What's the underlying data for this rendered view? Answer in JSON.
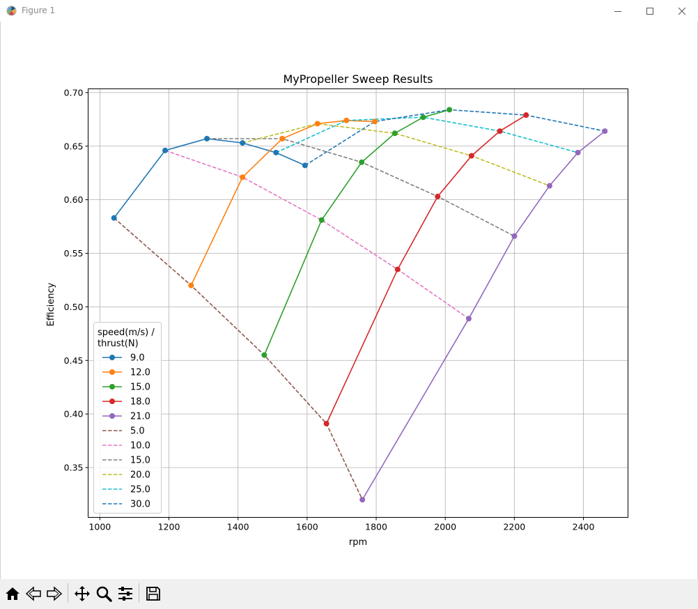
{
  "window": {
    "title": "Figure 1"
  },
  "toolbar": {
    "buttons": [
      "home-icon",
      "back-icon",
      "forward-icon",
      "pan-icon",
      "zoom-icon",
      "configure-icon",
      "save-icon"
    ]
  },
  "chart_data": {
    "type": "line",
    "title": "MyPropeller Sweep Results",
    "xlabel": "rpm",
    "ylabel": "Efficiency",
    "xlim": [
      966,
      2529
    ],
    "ylim": [
      0.3035,
      0.7035
    ],
    "xticks": [
      1000,
      1200,
      1400,
      1600,
      1800,
      2000,
      2200,
      2400
    ],
    "xtick_labels": [
      "1000",
      "1200",
      "1400",
      "1600",
      "1800",
      "2000",
      "2200",
      "2400"
    ],
    "yticks": [
      0.35,
      0.4,
      0.45,
      0.5,
      0.55,
      0.6,
      0.65,
      0.7
    ],
    "ytick_labels": [
      "0.35",
      "0.40",
      "0.45",
      "0.50",
      "0.55",
      "0.60",
      "0.65",
      "0.70"
    ],
    "grid": true,
    "legend": {
      "title": "speed(m/s) /\nthrust(N)",
      "title_lines": [
        "speed(m/s) /",
        "thrust(N)"
      ],
      "placement": "lower-left"
    },
    "series": [
      {
        "name": "9.0",
        "style": "solid",
        "marker": "circle",
        "color": "#1f77b4",
        "x": [
          1041,
          1189,
          1310,
          1413,
          1510,
          1594
        ],
        "y": [
          0.583,
          0.646,
          0.657,
          0.653,
          0.644,
          0.632
        ]
      },
      {
        "name": "12.0",
        "style": "solid",
        "marker": "circle",
        "color": "#ff7f0e",
        "x": [
          1264,
          1413,
          1528,
          1630,
          1714,
          1796
        ],
        "y": [
          0.52,
          0.621,
          0.657,
          0.671,
          0.674,
          0.673
        ]
      },
      {
        "name": "15.0",
        "style": "solid",
        "marker": "circle",
        "color": "#2ca02c",
        "x": [
          1476,
          1642,
          1758,
          1854,
          1936,
          2012
        ],
        "y": [
          0.455,
          0.581,
          0.635,
          0.662,
          0.677,
          0.684
        ]
      },
      {
        "name": "18.0",
        "style": "solid",
        "marker": "circle",
        "color": "#d62728",
        "x": [
          1656,
          1862,
          1978,
          2076,
          2158,
          2234
        ],
        "y": [
          0.391,
          0.535,
          0.603,
          0.641,
          0.664,
          0.679
        ]
      },
      {
        "name": "21.0",
        "style": "solid",
        "marker": "circle",
        "color": "#9467bd",
        "x": [
          1760,
          2068,
          2200,
          2302,
          2384,
          2462
        ],
        "y": [
          0.32,
          0.489,
          0.566,
          0.613,
          0.644,
          0.664
        ]
      },
      {
        "name": "5.0",
        "style": "dashed",
        "marker": "none",
        "color": "#8c564b",
        "x": [
          1041,
          1264,
          1476,
          1656,
          1760
        ],
        "y": [
          0.583,
          0.52,
          0.455,
          0.391,
          0.32
        ]
      },
      {
        "name": "10.0",
        "style": "dashed",
        "marker": "none",
        "color": "#e377c2",
        "x": [
          1189,
          1413,
          1642,
          1862,
          2068
        ],
        "y": [
          0.646,
          0.621,
          0.581,
          0.535,
          0.489
        ]
      },
      {
        "name": "15.0",
        "style": "dashed",
        "marker": "none",
        "color": "#7f7f7f",
        "x": [
          1310,
          1528,
          1758,
          1978,
          2200
        ],
        "y": [
          0.657,
          0.657,
          0.635,
          0.603,
          0.566
        ]
      },
      {
        "name": "20.0",
        "style": "dashed",
        "marker": "none",
        "color": "#bcbd22",
        "x": [
          1413,
          1630,
          1854,
          2076,
          2302
        ],
        "y": [
          0.653,
          0.671,
          0.662,
          0.641,
          0.613
        ]
      },
      {
        "name": "25.0",
        "style": "dashed",
        "marker": "none",
        "color": "#17becf",
        "x": [
          1510,
          1714,
          1936,
          2158,
          2384
        ],
        "y": [
          0.644,
          0.674,
          0.677,
          0.664,
          0.644
        ]
      },
      {
        "name": "30.0",
        "style": "dashed",
        "marker": "none",
        "color": "#1f77b4",
        "x": [
          1594,
          1796,
          2012,
          2234,
          2462
        ],
        "y": [
          0.632,
          0.673,
          0.684,
          0.679,
          0.664
        ]
      }
    ]
  }
}
